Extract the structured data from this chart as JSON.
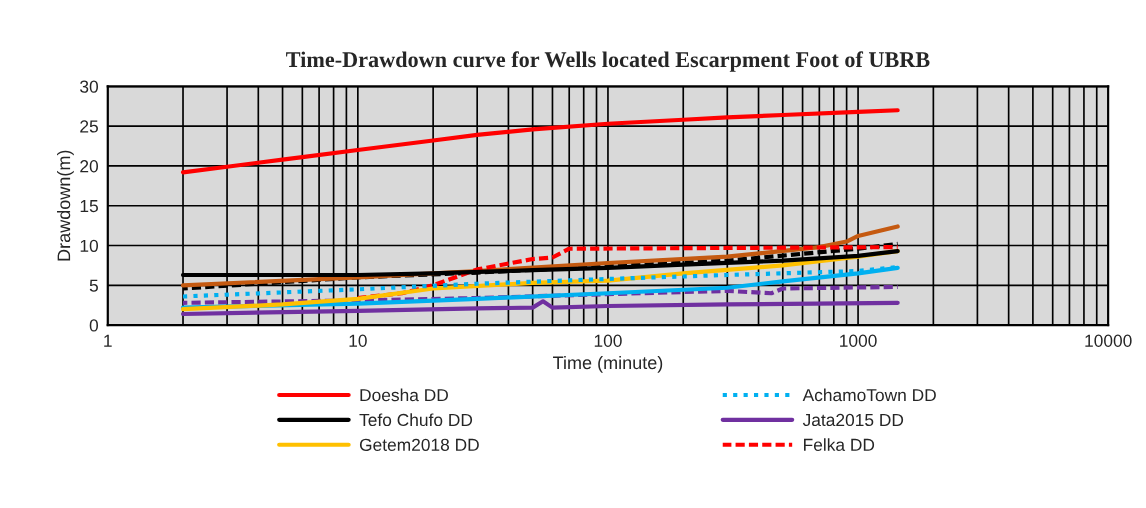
{
  "chart_data": {
    "type": "line",
    "title": "Time-Drawdown curve for Wells located Escarpment Foot of UBRB",
    "xlabel": "Time (minute)",
    "ylabel": "Drawdown(m)",
    "log": "x",
    "xlim": [
      1,
      10000
    ],
    "xticks": [
      1,
      10,
      100,
      1000,
      10000
    ],
    "ylim": [
      0,
      30
    ],
    "yticks": [
      0,
      5,
      10,
      15,
      20,
      25,
      30
    ],
    "grid": true,
    "legend": "bottom",
    "series": [
      {
        "name": "Doesha DD",
        "color": "#ff0000",
        "line_style": "solid",
        "x": [
          2,
          3,
          5,
          6,
          10,
          20,
          30,
          50,
          100,
          200,
          300,
          500,
          1000,
          1440
        ],
        "values": [
          19.2,
          19.9,
          20.8,
          21.1,
          22.0,
          23.2,
          23.9,
          24.6,
          25.3,
          25.8,
          26.1,
          26.4,
          26.8,
          27.0
        ]
      },
      {
        "name": "AchamoTown DD",
        "color": "#00b0f0",
        "line_style": "dotted",
        "x": [
          2,
          10,
          30,
          100,
          300,
          1000,
          1440
        ],
        "values": [
          3.6,
          4.5,
          5.2,
          5.8,
          6.3,
          6.8,
          7.3
        ]
      },
      {
        "name": "Tefo Chufo DD",
        "color": "#000000",
        "line_style": "solid",
        "x": [
          2,
          10,
          20,
          50,
          100,
          200,
          500,
          1000,
          1440
        ],
        "values": [
          6.3,
          6.3,
          6.5,
          6.9,
          7.2,
          7.6,
          8.1,
          8.7,
          9.3
        ]
      },
      {
        "name": "Jata2015 DD",
        "color": "#7030a0",
        "line_style": "solid",
        "x": [
          2,
          10,
          30,
          50,
          55,
          60,
          100,
          300,
          1440
        ],
        "values": [
          1.4,
          1.8,
          2.1,
          2.2,
          3.0,
          2.2,
          2.4,
          2.6,
          2.8
        ]
      },
      {
        "name": "Getem2018 DD",
        "color": "#ffc000",
        "line_style": "solid",
        "x": [
          2,
          5,
          10,
          20,
          50,
          100,
          200,
          500,
          1000,
          1440
        ],
        "values": [
          2.0,
          2.6,
          3.3,
          4.6,
          5.3,
          5.6,
          6.5,
          7.5,
          8.6,
          9.3
        ]
      },
      {
        "name": "Felka DD",
        "color": "#ff0000",
        "line_style": "dashed",
        "x": [
          10,
          15,
          20,
          30,
          50,
          60,
          70,
          1440
        ],
        "values": [
          3.4,
          4.0,
          5.0,
          7.0,
          8.3,
          8.5,
          9.6,
          9.8
        ]
      },
      {
        "color": "#c55a11",
        "line_style": "solid",
        "x": [
          2,
          10,
          30,
          100,
          300,
          700,
          900,
          1000,
          1440
        ],
        "values": [
          5.0,
          6.0,
          6.8,
          7.8,
          8.6,
          9.8,
          10.5,
          11.2,
          12.4
        ]
      },
      {
        "color": "#000000",
        "line_style": "dashed",
        "x": [
          2,
          5,
          10,
          30,
          100,
          300,
          1000,
          1440
        ],
        "values": [
          4.6,
          5.4,
          6.0,
          6.6,
          7.4,
          8.1,
          9.6,
          10.2
        ]
      },
      {
        "color": "#00b0f0",
        "line_style": "solid",
        "x": [
          2,
          10,
          30,
          100,
          300,
          500,
          1000,
          1440
        ],
        "values": [
          2.2,
          2.7,
          3.3,
          4.0,
          4.7,
          5.5,
          6.5,
          7.2
        ]
      },
      {
        "color": "#7030a0",
        "line_style": "dashed",
        "x": [
          2,
          10,
          30,
          100,
          300,
          450,
          500,
          1440
        ],
        "values": [
          2.8,
          3.1,
          3.4,
          3.9,
          4.3,
          4.0,
          4.6,
          4.8
        ]
      }
    ]
  }
}
